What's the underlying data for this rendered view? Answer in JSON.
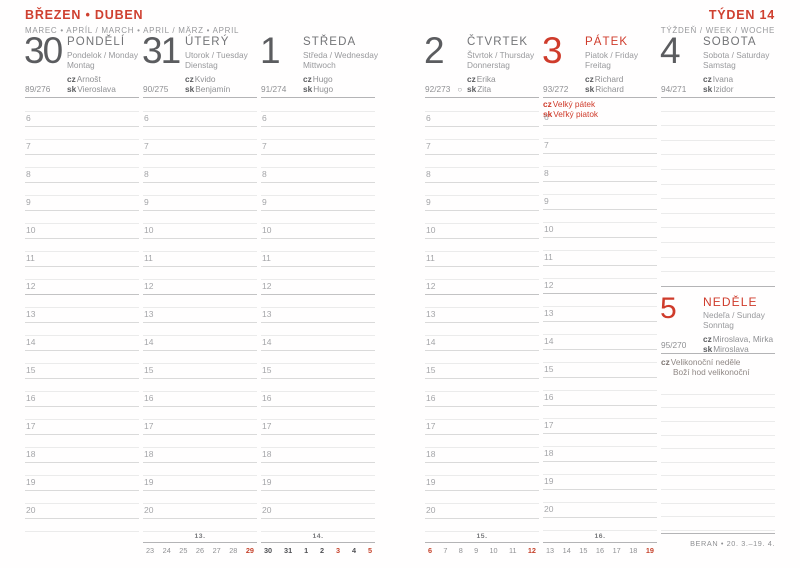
{
  "accent": "#cf3b2b",
  "page_header": {
    "left_title": "BŘEZEN • DUBEN",
    "left_subtitle": "MAREC • APRÍL / MARCH • APRIL / MÄRZ • APRIL",
    "right_title": "TÝDEN 14",
    "right_subtitle": "TÝŽDEŇ / WEEK / WOCHE"
  },
  "days": [
    {
      "number": "30",
      "name": "PONDĚLÍ",
      "line1": "Pondelok / Monday",
      "line2": "Montag",
      "cz_label": "cz",
      "cz": "Arnošt",
      "sk_label": "sk",
      "sk": "Vieroslava",
      "day_of_year": "89/276"
    },
    {
      "number": "31",
      "name": "ÚTERÝ",
      "line1": "Utorok / Tuesday",
      "line2": "Dienstag",
      "cz_label": "cz",
      "cz": "Kvido",
      "sk_label": "sk",
      "sk": "Benjamín",
      "day_of_year": "90/275"
    },
    {
      "number": "1",
      "name": "STŘEDA",
      "line1": "Středa / Wednesday",
      "line2": "Mittwoch",
      "cz_label": "cz",
      "cz": "Hugo",
      "sk_label": "sk",
      "sk": "Hugo",
      "day_of_year": "91/274"
    },
    {
      "number": "2",
      "name": "ČTVRTEK",
      "line1": "Štvrtok / Thursday",
      "line2": "Donnerstag",
      "cz_label": "cz",
      "cz": "Erika",
      "sk_label": "sk",
      "sk": "Zita",
      "day_of_year": "92/273",
      "moon": "○"
    },
    {
      "number": "3",
      "name": "PÁTEK",
      "line1": "Piatok / Friday",
      "line2": "Freitag",
      "cz_label": "cz",
      "cz": "Richard",
      "sk_label": "sk",
      "sk": "Richard",
      "day_of_year": "93/272",
      "holiday": [
        {
          "p": "cz",
          "t": "Velký pátek"
        },
        {
          "p": "sk",
          "t": "Veľký piatok"
        }
      ]
    },
    {
      "number": "4",
      "name": "SOBOTA",
      "line1": "Sobota / Saturday",
      "line2": "Samstag",
      "cz_label": "cz",
      "cz": "Ivana",
      "sk_label": "sk",
      "sk": "Izidor",
      "day_of_year": "94/271"
    },
    {
      "number": "5",
      "name": "NEDĚLE",
      "line1": "Nedeľa / Sunday",
      "line2": "Sonntag",
      "cz_label": "cz",
      "cz": "Miroslava, Mirka",
      "sk_label": "sk",
      "sk": "Miroslava",
      "day_of_year": "95/270",
      "holiday": [
        {
          "p": "cz",
          "t": "Velikonoční neděle"
        },
        {
          "p": "",
          "t": "Boží hod velikonoční"
        }
      ]
    }
  ],
  "hours": [
    "6",
    "7",
    "8",
    "9",
    "10",
    "11",
    "12",
    "13",
    "14",
    "15",
    "16",
    "17",
    "18",
    "19",
    "20"
  ],
  "mini_weeks": [
    {
      "label": "13.",
      "days": [
        {
          "t": "23"
        },
        {
          "t": "24"
        },
        {
          "t": "25"
        },
        {
          "t": "26"
        },
        {
          "t": "27"
        },
        {
          "t": "28"
        },
        {
          "t": "29",
          "c": "red"
        }
      ]
    },
    {
      "label": "14.",
      "days": [
        {
          "t": "30",
          "c": "bold"
        },
        {
          "t": "31",
          "c": "bold"
        },
        {
          "t": "1",
          "c": "bold"
        },
        {
          "t": "2",
          "c": "bold"
        },
        {
          "t": "3",
          "c": "redbold"
        },
        {
          "t": "4",
          "c": "bold"
        },
        {
          "t": "5",
          "c": "redbold"
        }
      ]
    },
    {
      "label": "15.",
      "days": [
        {
          "t": "6",
          "c": "red"
        },
        {
          "t": "7"
        },
        {
          "t": "8"
        },
        {
          "t": "9"
        },
        {
          "t": "10"
        },
        {
          "t": "11"
        },
        {
          "t": "12",
          "c": "red"
        }
      ]
    },
    {
      "label": "16.",
      "days": [
        {
          "t": "13"
        },
        {
          "t": "14"
        },
        {
          "t": "15"
        },
        {
          "t": "16"
        },
        {
          "t": "17"
        },
        {
          "t": "18"
        },
        {
          "t": "19",
          "c": "red"
        }
      ]
    }
  ],
  "zodiac": "BERAN • 20. 3.–19. 4."
}
